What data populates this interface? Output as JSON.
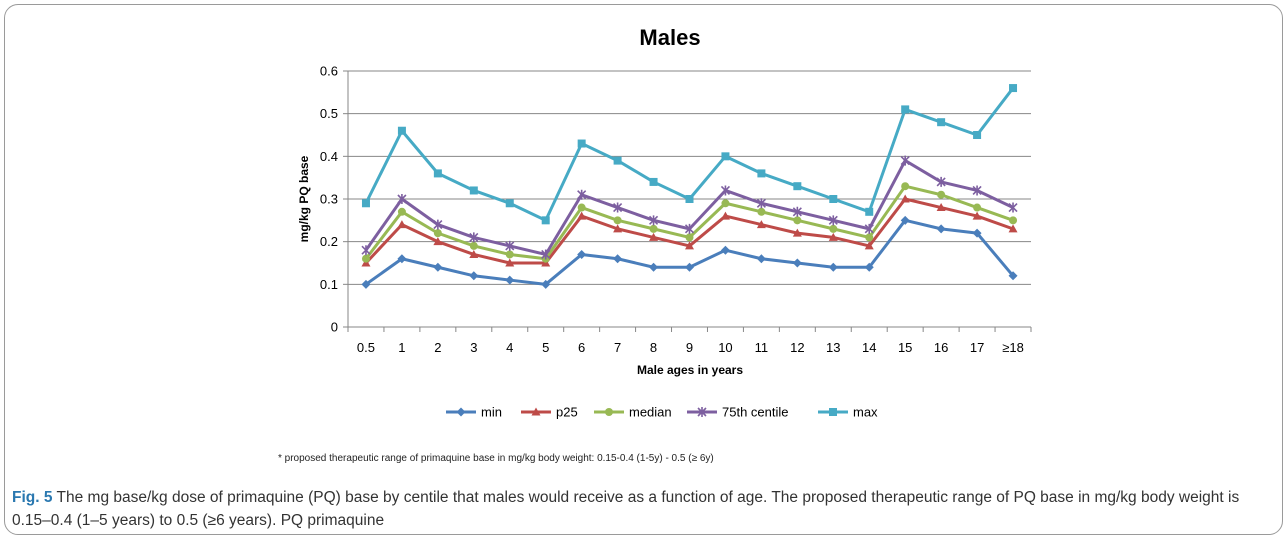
{
  "chart_data": {
    "type": "line",
    "title": "Males",
    "xlabel": "Male ages in years",
    "ylabel": "mg/kg PQ base",
    "ylim": [
      0,
      0.6
    ],
    "yticks": [
      "0",
      "0.1",
      "0.2",
      "0.3",
      "0.4",
      "0.5",
      "0.6"
    ],
    "grid": true,
    "legend": "bottom",
    "categories": [
      "0.5",
      "1",
      "2",
      "3",
      "4",
      "5",
      "6",
      "7",
      "8",
      "9",
      "10",
      "11",
      "12",
      "13",
      "14",
      "15",
      "16",
      "17",
      "≥18"
    ],
    "series": [
      {
        "name": "min",
        "color": "#4a7ebb",
        "marker": "diamond",
        "values": [
          0.1,
          0.16,
          0.14,
          0.12,
          0.11,
          0.1,
          0.17,
          0.16,
          0.14,
          0.14,
          0.18,
          0.16,
          0.15,
          0.14,
          0.14,
          0.25,
          0.23,
          0.22,
          0.12
        ]
      },
      {
        "name": "p25",
        "color": "#be4b48",
        "marker": "triangle",
        "values": [
          0.15,
          0.24,
          0.2,
          0.17,
          0.15,
          0.15,
          0.26,
          0.23,
          0.21,
          0.19,
          0.26,
          0.24,
          0.22,
          0.21,
          0.19,
          0.3,
          0.28,
          0.26,
          0.23
        ]
      },
      {
        "name": "median",
        "color": "#98b954",
        "marker": "circle",
        "values": [
          0.16,
          0.27,
          0.22,
          0.19,
          0.17,
          0.16,
          0.28,
          0.25,
          0.23,
          0.21,
          0.29,
          0.27,
          0.25,
          0.23,
          0.21,
          0.33,
          0.31,
          0.28,
          0.25
        ]
      },
      {
        "name": "75th centile",
        "color": "#7d5fa0",
        "marker": "star",
        "values": [
          0.18,
          0.3,
          0.24,
          0.21,
          0.19,
          0.17,
          0.31,
          0.28,
          0.25,
          0.23,
          0.32,
          0.29,
          0.27,
          0.25,
          0.23,
          0.39,
          0.34,
          0.32,
          0.28
        ]
      },
      {
        "name": "max",
        "color": "#46aac5",
        "marker": "square",
        "values": [
          0.29,
          0.46,
          0.36,
          0.32,
          0.29,
          0.25,
          0.43,
          0.39,
          0.34,
          0.3,
          0.4,
          0.36,
          0.33,
          0.3,
          0.27,
          0.51,
          0.48,
          0.45,
          0.56
        ]
      }
    ]
  },
  "footnote": "* proposed therapeutic range of primaquine base in mg/kg body weight: 0.15-0.4 (1-5y) - 0.5 (≥ 6y)",
  "caption": {
    "label": "Fig. 5",
    "text": " The mg base/kg dose of primaquine (PQ) base by centile that males would receive as a function of age. The proposed therapeutic range of PQ base in mg/kg body weight is 0.15–0.4 (1–5 years) to 0.5 (≥6 years). PQ primaquine"
  }
}
